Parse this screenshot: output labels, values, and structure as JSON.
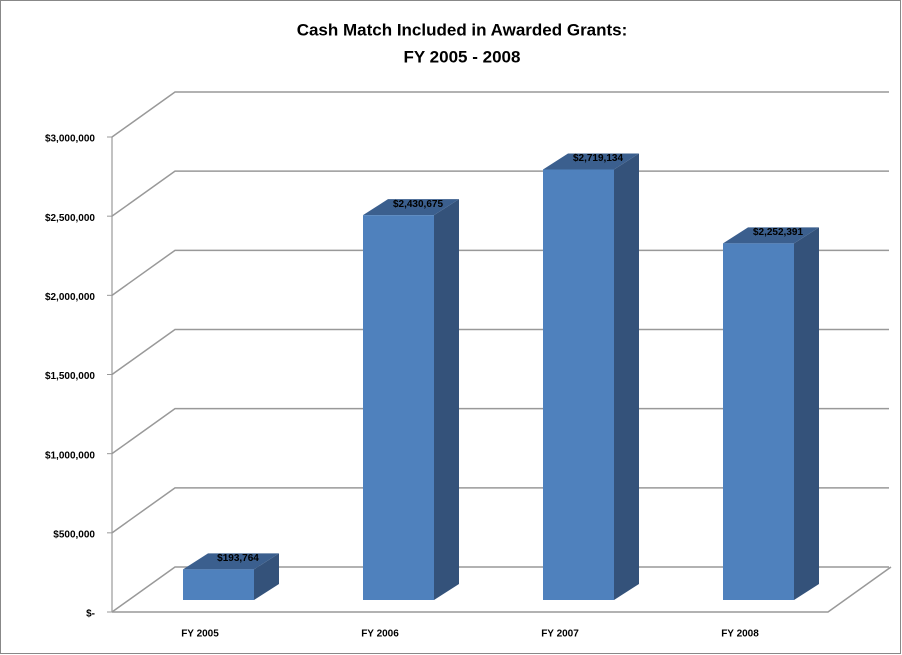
{
  "chart_data": {
    "type": "bar3d",
    "title": [
      "Cash Match Included in Awarded Grants:",
      "FY 2005 - 2008"
    ],
    "categories": [
      "FY 2005",
      "FY 2006",
      "FY 2007",
      "FY 2008"
    ],
    "values": [
      193764,
      2430675,
      2719134,
      2252391
    ],
    "value_labels": [
      "$193,764",
      "$2,430,675",
      "$2,719,134",
      "$2,252,391"
    ],
    "color": "#4f81bd",
    "ylim": [
      0,
      3000000
    ],
    "yticks": [
      {
        "value": 0,
        "label": "$-"
      },
      {
        "value": 500000,
        "label": "$500,000"
      },
      {
        "value": 1000000,
        "label": "$1,000,000"
      },
      {
        "value": 1500000,
        "label": "$1,500,000"
      },
      {
        "value": 2000000,
        "label": "$2,000,000"
      },
      {
        "value": 2500000,
        "label": "$2,500,000"
      },
      {
        "value": 3000000,
        "label": "$3,000,000"
      }
    ],
    "grid": true
  }
}
